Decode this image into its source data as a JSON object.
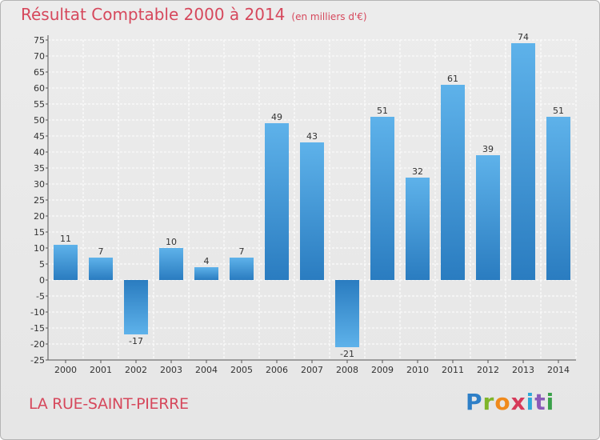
{
  "header": {
    "title": "Résultat Comptable 2000 à 2014",
    "subtitle": "(en milliers d'€)"
  },
  "footer": {
    "location": "LA RUE-SAINT-PIERRE",
    "logo_letters": [
      "P",
      "r",
      "o",
      "x",
      "i",
      "t",
      "i"
    ],
    "logo_colors": [
      "#2e7fc7",
      "#7fb52a",
      "#f08a1c",
      "#d63a5a",
      "#2ea8d8",
      "#8a5bb8",
      "#3aa14a"
    ]
  },
  "colors": {
    "bar_light": "#5eb2ea",
    "bar_dark": "#2a7cc0",
    "title": "#d6485c",
    "grid": "#ffffff"
  },
  "chart_data": {
    "type": "bar",
    "title": "Résultat Comptable 2000 à 2014",
    "subtitle": "(en milliers d'€)",
    "xlabel": "",
    "ylabel": "",
    "categories": [
      "2000",
      "2001",
      "2002",
      "2003",
      "2004",
      "2005",
      "2006",
      "2007",
      "2008",
      "2009",
      "2010",
      "2011",
      "2012",
      "2013",
      "2014"
    ],
    "values": [
      11,
      7,
      -17,
      10,
      4,
      7,
      49,
      43,
      -21,
      51,
      32,
      61,
      39,
      74,
      51
    ],
    "ylim": [
      -25,
      75
    ],
    "ytick_step": 5,
    "grid": true,
    "legend": "none"
  }
}
